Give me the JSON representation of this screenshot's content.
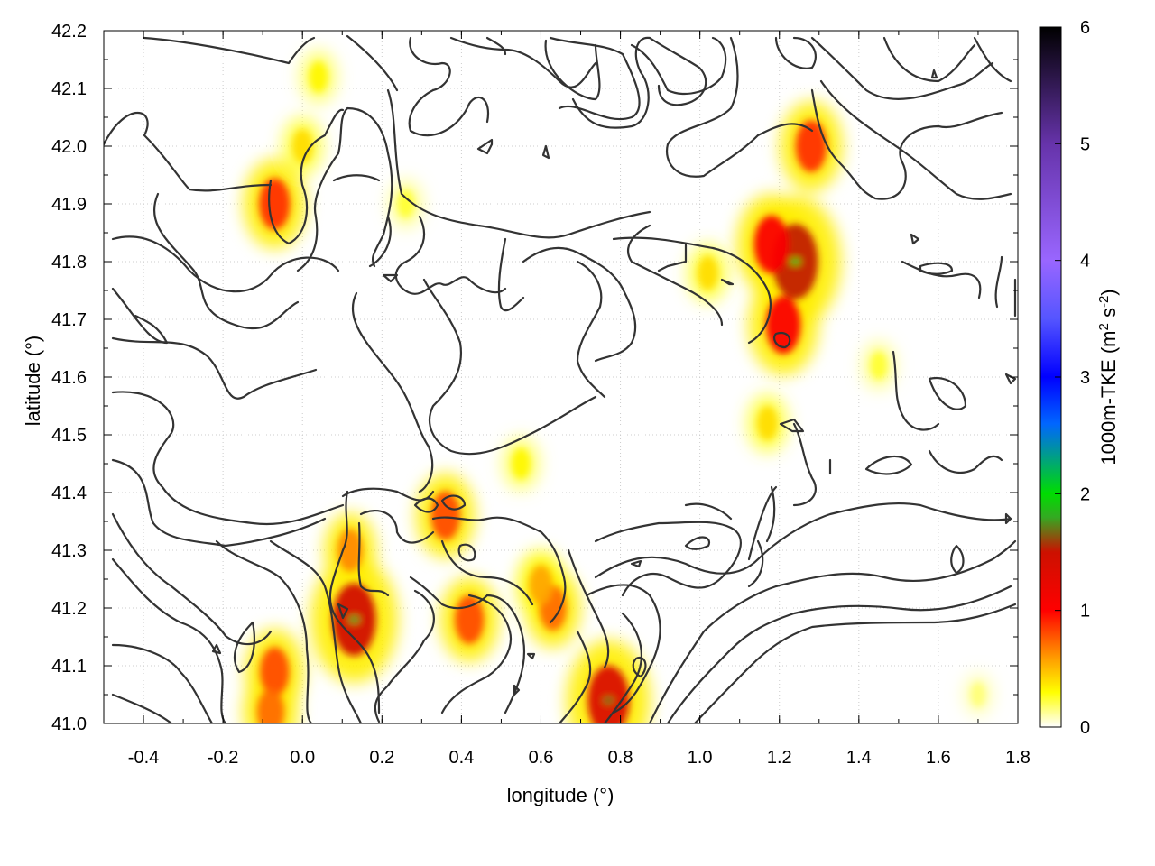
{
  "chart_data": {
    "type": "heatmap",
    "xlabel": "longitude (°)",
    "ylabel": "latitude (°)",
    "xlim": [
      -0.5,
      1.8
    ],
    "ylim": [
      41.0,
      42.2
    ],
    "xticks": [
      -0.4,
      -0.2,
      0.0,
      0.2,
      0.4,
      0.6,
      0.8,
      1.0,
      1.2,
      1.4,
      1.6,
      1.8
    ],
    "yticks": [
      41.0,
      41.1,
      41.2,
      41.3,
      41.4,
      41.5,
      41.6,
      41.7,
      41.8,
      41.9,
      42.0,
      42.1,
      42.2
    ],
    "xtick_labels": [
      "-0.4",
      "-0.2",
      "0.0",
      "0.2",
      "0.4",
      "0.6",
      "0.8",
      "1.0",
      "1.2",
      "1.4",
      "1.6",
      "1.8"
    ],
    "ytick_labels": [
      "41.0",
      "41.1",
      "41.2",
      "41.3",
      "41.4",
      "41.5",
      "41.6",
      "41.7",
      "41.8",
      "41.9",
      "42.0",
      "42.1",
      "42.2"
    ],
    "grid": true,
    "colorbar": {
      "label": "1000m-TKE (m² s⁻²)",
      "label_parts": [
        "1000m-TKE (m",
        "2",
        " s",
        "-2",
        ")"
      ],
      "range": [
        0,
        6
      ],
      "ticks": [
        0,
        1,
        2,
        3,
        4,
        5,
        6
      ],
      "tick_labels": [
        "0",
        "1",
        "2",
        "3",
        "4",
        "5",
        "6"
      ],
      "stops": [
        {
          "value": 0.0,
          "color": "#ffffff"
        },
        {
          "value": 0.3,
          "color": "#ffff00"
        },
        {
          "value": 0.6,
          "color": "#ff9900"
        },
        {
          "value": 1.0,
          "color": "#ff0000"
        },
        {
          "value": 1.5,
          "color": "#cc1100"
        },
        {
          "value": 1.8,
          "color": "#33aa22"
        },
        {
          "value": 2.0,
          "color": "#00dd00"
        },
        {
          "value": 2.6,
          "color": "#0066ff"
        },
        {
          "value": 3.0,
          "color": "#0000ff"
        },
        {
          "value": 3.5,
          "color": "#5555ff"
        },
        {
          "value": 4.0,
          "color": "#9966ff"
        },
        {
          "value": 5.0,
          "color": "#6633aa"
        },
        {
          "value": 6.0,
          "color": "#000000"
        }
      ]
    },
    "tke_hotspots": [
      {
        "lon": -0.07,
        "lat": 41.9,
        "peak": 1.1
      },
      {
        "lon": 0.0,
        "lat": 42.0,
        "peak": 0.5
      },
      {
        "lon": 0.04,
        "lat": 42.12,
        "peak": 0.4
      },
      {
        "lon": 0.36,
        "lat": 41.36,
        "peak": 1.0
      },
      {
        "lon": 0.42,
        "lat": 41.18,
        "peak": 1.0
      },
      {
        "lon": 0.13,
        "lat": 41.18,
        "peak": 1.8
      },
      {
        "lon": 0.12,
        "lat": 41.3,
        "peak": 0.8
      },
      {
        "lon": -0.07,
        "lat": 41.09,
        "peak": 1.0
      },
      {
        "lon": -0.08,
        "lat": 41.02,
        "peak": 0.9
      },
      {
        "lon": 0.77,
        "lat": 41.04,
        "peak": 1.7
      },
      {
        "lon": 0.63,
        "lat": 41.2,
        "peak": 0.9
      },
      {
        "lon": 0.6,
        "lat": 41.24,
        "peak": 0.7
      },
      {
        "lon": 1.24,
        "lat": 41.8,
        "peak": 1.9
      },
      {
        "lon": 1.18,
        "lat": 41.83,
        "peak": 1.3
      },
      {
        "lon": 1.21,
        "lat": 41.69,
        "peak": 1.3
      },
      {
        "lon": 1.28,
        "lat": 42.0,
        "peak": 1.1
      },
      {
        "lon": 1.02,
        "lat": 41.78,
        "peak": 0.5
      },
      {
        "lon": 1.17,
        "lat": 41.52,
        "peak": 0.5
      },
      {
        "lon": 0.55,
        "lat": 41.45,
        "peak": 0.4
      },
      {
        "lon": 0.26,
        "lat": 41.9,
        "peak": 0.3
      },
      {
        "lon": 1.45,
        "lat": 41.62,
        "peak": 0.3
      },
      {
        "lon": 1.7,
        "lat": 41.05,
        "peak": 0.2
      }
    ],
    "contour_note": "terrain elevation isolines overlaid (unlabeled)"
  }
}
